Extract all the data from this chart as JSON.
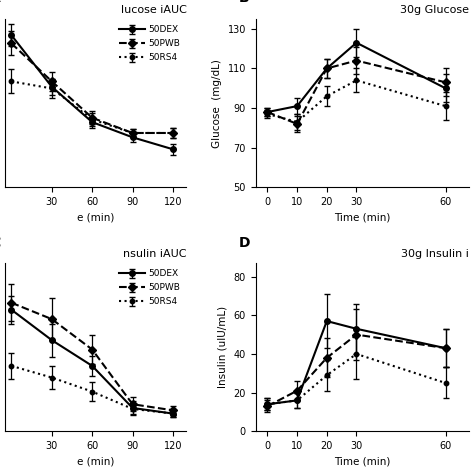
{
  "panel_A": {
    "label": "A",
    "title": "lucose iAUC",
    "xlabel": "e (min)",
    "ylabel": "",
    "x": [
      0,
      30,
      60,
      90,
      120
    ],
    "dex_y": [
      260,
      165,
      100,
      72,
      50
    ],
    "dex_err": [
      20,
      15,
      10,
      8,
      10
    ],
    "pwb_y": [
      245,
      175,
      108,
      80,
      80
    ],
    "pwb_err": [
      22,
      18,
      12,
      8,
      9
    ],
    "rs4_y": [
      175,
      162,
      105,
      80,
      80
    ],
    "rs4_err": [
      22,
      18,
      12,
      8,
      9
    ],
    "ylim": [
      -20,
      290
    ],
    "xlim": [
      -5,
      130
    ],
    "xticks": [
      30,
      60,
      90,
      120
    ],
    "yticks": [],
    "clip_on_left": true
  },
  "panel_B": {
    "label": "B",
    "title": "30g Glucose",
    "xlabel": "Time (min)",
    "ylabel": "Glucose  (mg/dL)",
    "x": [
      0,
      10,
      20,
      30,
      60
    ],
    "dex_y": [
      88,
      91,
      110,
      123,
      100
    ],
    "dex_err": [
      2,
      4,
      5,
      7,
      7
    ],
    "pwb_y": [
      88,
      82,
      110,
      114,
      103
    ],
    "pwb_err": [
      2,
      4,
      5,
      7,
      7
    ],
    "rs4_y": [
      87,
      83,
      96,
      104,
      91
    ],
    "rs4_err": [
      2,
      4,
      5,
      6,
      7
    ],
    "ylim": [
      50,
      135
    ],
    "xlim": [
      -4,
      68
    ],
    "xticks": [
      0,
      10,
      20,
      30,
      60
    ],
    "yticks": [
      50,
      70,
      90,
      110,
      130
    ]
  },
  "panel_C": {
    "label": "C",
    "title": "nsulin iAUC",
    "xlabel": "e (min)",
    "ylabel": "",
    "x": [
      0,
      30,
      60,
      90,
      120
    ],
    "dex_y": [
      240,
      175,
      120,
      30,
      18
    ],
    "dex_err": [
      30,
      35,
      22,
      15,
      8
    ],
    "pwb_y": [
      255,
      220,
      155,
      38,
      25
    ],
    "pwb_err": [
      40,
      45,
      30,
      15,
      9
    ],
    "rs4_y": [
      120,
      95,
      65,
      28,
      18
    ],
    "rs4_err": [
      28,
      25,
      20,
      10,
      7
    ],
    "ylim": [
      -20,
      340
    ],
    "xlim": [
      -5,
      130
    ],
    "xticks": [
      30,
      60,
      90,
      120
    ],
    "yticks": []
  },
  "panel_D": {
    "label": "D",
    "title": "30g Insulin i",
    "xlabel": "Time (min)",
    "ylabel": "Insulin (ulU/mL)",
    "x": [
      0,
      10,
      20,
      30,
      60
    ],
    "dex_y": [
      14,
      16,
      57,
      53,
      43
    ],
    "dex_err": [
      3,
      4,
      14,
      13,
      10
    ],
    "pwb_y": [
      13,
      21,
      38,
      50,
      43
    ],
    "pwb_err": [
      3,
      5,
      10,
      13,
      10
    ],
    "rs4_y": [
      14,
      16,
      29,
      40,
      25
    ],
    "rs4_err": [
      3,
      4,
      8,
      13,
      8
    ],
    "ylim": [
      0,
      87
    ],
    "xlim": [
      -4,
      68
    ],
    "xticks": [
      0,
      10,
      20,
      30,
      60
    ],
    "yticks": [
      0,
      20,
      40,
      60,
      80
    ]
  },
  "line_color": "black",
  "capsize": 2.5,
  "elinewidth": 0.9,
  "DEX_ls": "-",
  "DEX_marker": "o",
  "DEX_ms": 4.0,
  "DEX_lw": 1.5,
  "DEX_label": "50DEX",
  "PWB_ls": "--",
  "PWB_marker": "D",
  "PWB_ms": 3.8,
  "PWB_lw": 1.5,
  "PWB_label": "50PWB",
  "RS4_ls": ":",
  "RS4_marker": "o",
  "RS4_ms": 3.2,
  "RS4_lw": 1.5,
  "RS4_label": "50RS4"
}
